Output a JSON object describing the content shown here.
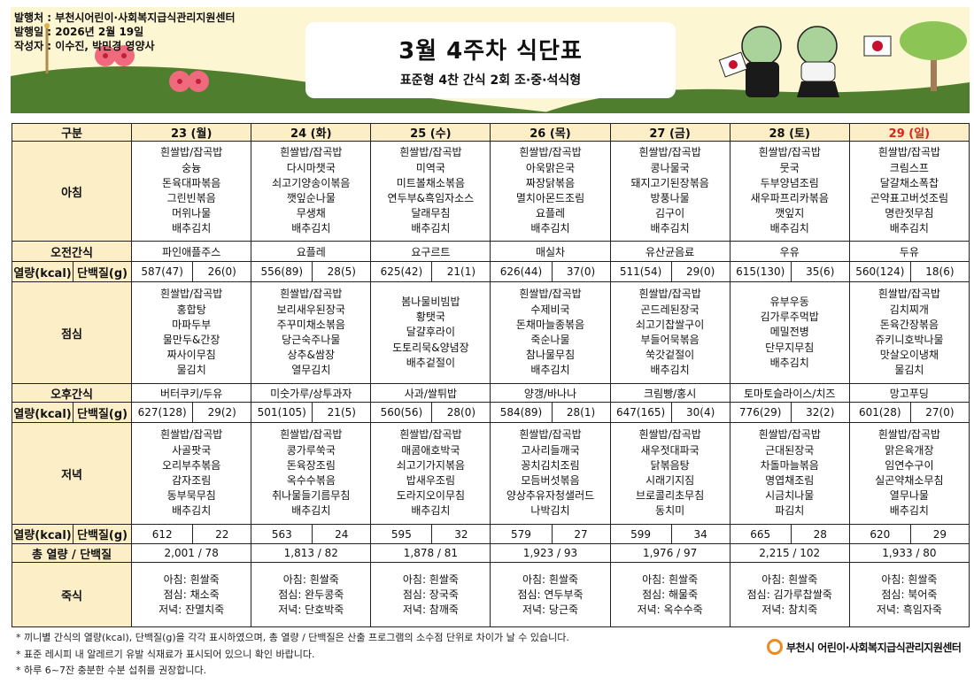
{
  "header": {
    "publisher": "발행처 : 부천시어린이·사회복지급식관리지원센터",
    "date": "발행일 : 2026년 2월 19일",
    "author": "작성자 : 이수진, 박민경 영양사",
    "title": "3월 4주차 식단표",
    "subtitle": "표준형 4찬 간식 2회 조·중·석식형"
  },
  "labels": {
    "category": "구분",
    "breakfast": "아침",
    "am_snack": "오전간식",
    "kcal": "열량(kcal)",
    "protein": "단백질(g)",
    "lunch": "점심",
    "pm_snack": "오후간식",
    "dinner": "저녁",
    "total": "총 열량 / 단백질",
    "porridge": "죽식"
  },
  "colors": {
    "header_bg": "#fcefc8",
    "sunday": "#e0201a",
    "banner_bg": "#fdf6d2",
    "logo": "#f08a1c"
  },
  "days": [
    {
      "label": "23 (월)",
      "sunday": false,
      "breakfast": [
        "흰쌀밥/잡곡밥",
        "숭늉",
        "돈육대파볶음",
        "그린빈볶음",
        "머위나물",
        "배추김치"
      ],
      "am_snack": "파인애플주스",
      "am_kcal": "587(47)",
      "am_protein": "26(0)",
      "lunch": [
        "흰쌀밥/잡곡밥",
        "홍합탕",
        "마파두부",
        "물만두&간장",
        "짜사이무침",
        "물김치"
      ],
      "pm_snack": "버터쿠키/두유",
      "pm_kcal": "627(128)",
      "pm_protein": "29(2)",
      "dinner": [
        "흰쌀밥/잡곡밥",
        "사골팟국",
        "오리부추볶음",
        "감자조림",
        "동부묵무침",
        "배추김치"
      ],
      "dn_kcal": "612",
      "dn_protein": "22",
      "total": "2,001  /  78",
      "porridge": [
        "아침: 흰쌀죽",
        "점심: 채소죽",
        "저녁: 잔멸치죽"
      ]
    },
    {
      "label": "24 (화)",
      "sunday": false,
      "breakfast": [
        "흰쌀밥/잡곡밥",
        "다시마챗국",
        "쇠고기양송이볶음",
        "깻잎순나물",
        "무생채",
        "배추김치"
      ],
      "am_snack": "요플레",
      "am_kcal": "556(89)",
      "am_protein": "28(5)",
      "lunch": [
        "흰쌀밥/잡곡밥",
        "보리새우된장국",
        "주꾸미채소볶음",
        "당근숙주나물",
        "상추&쌈장",
        "열무김치"
      ],
      "pm_snack": "미숫가루/상투과자",
      "pm_kcal": "501(105)",
      "pm_protein": "21(5)",
      "dinner": [
        "흰쌀밥/잡곡밥",
        "콩가루쑥국",
        "돈육장조림",
        "옥수수볶음",
        "취나물들기름무침",
        "배추김치"
      ],
      "dn_kcal": "563",
      "dn_protein": "24",
      "total": "1,813  /  82",
      "porridge": [
        "아침: 흰쌀죽",
        "점심: 완두콩죽",
        "저녁: 단호박죽"
      ]
    },
    {
      "label": "25 (수)",
      "sunday": false,
      "breakfast": [
        "흰쌀밥/잡곡밥",
        "미역국",
        "미트볼채소볶음",
        "연두부&흑임자소스",
        "달래무침",
        "배추김치"
      ],
      "am_snack": "요구르트",
      "am_kcal": "625(42)",
      "am_protein": "21(1)",
      "lunch": [
        "봄나물비빔밥",
        "황탯국",
        "달걀후라이",
        "도토리묵&양념장",
        "배추겉절이"
      ],
      "pm_snack": "사과/쌀튀밥",
      "pm_kcal": "560(56)",
      "pm_protein": "28(0)",
      "dinner": [
        "흰쌀밥/잡곡밥",
        "매콤애호박국",
        "쇠고기가지볶음",
        "밥새우조림",
        "도라지오이무침",
        "배추김치"
      ],
      "dn_kcal": "595",
      "dn_protein": "32",
      "total": "1,878  /  81",
      "porridge": [
        "아침: 흰쌀죽",
        "점심: 장국죽",
        "저녁: 참깨죽"
      ]
    },
    {
      "label": "26 (목)",
      "sunday": false,
      "breakfast": [
        "흰쌀밥/잡곡밥",
        "아욱맑은국",
        "짜장닭볶음",
        "멸치아몬드조림",
        "요플레",
        "배추김치"
      ],
      "am_snack": "매실차",
      "am_kcal": "626(44)",
      "am_protein": "37(0)",
      "lunch": [
        "흰쌀밥/잡곡밥",
        "수제비국",
        "돈채마늘종볶음",
        "죽순나물",
        "참나물무침",
        "배추김치"
      ],
      "pm_snack": "양갱/바나나",
      "pm_kcal": "584(89)",
      "pm_protein": "28(1)",
      "dinner": [
        "흰쌀밥/잡곡밥",
        "고사리들깨국",
        "꽁치김치조림",
        "모듬버섯볶음",
        "양상추유자청샐러드",
        "나박김치"
      ],
      "dn_kcal": "579",
      "dn_protein": "27",
      "total": "1,923  /  93",
      "porridge": [
        "아침: 흰쌀죽",
        "점심: 연두부죽",
        "저녁: 당근죽"
      ]
    },
    {
      "label": "27 (금)",
      "sunday": false,
      "breakfast": [
        "흰쌀밥/잡곡밥",
        "콩나물국",
        "돼지고기된장볶음",
        "방풍나물",
        "김구이",
        "배추김치"
      ],
      "am_snack": "유산균음료",
      "am_kcal": "511(54)",
      "am_protein": "29(0)",
      "lunch": [
        "흰쌀밥/잡곡밥",
        "곤드레된장국",
        "쇠고기찹쌀구이",
        "부들어묵볶음",
        "쑥갓겉절이",
        "배추김치"
      ],
      "pm_snack": "크림빵/홍시",
      "pm_kcal": "647(165)",
      "pm_protein": "30(4)",
      "dinner": [
        "흰쌀밥/잡곡밥",
        "새우젓대파국",
        "닭볶음탕",
        "시래기지짐",
        "브로콜리초무침",
        "동치미"
      ],
      "dn_kcal": "599",
      "dn_protein": "34",
      "total": "1,976  /  97",
      "porridge": [
        "아침: 흰쌀죽",
        "점심: 해물죽",
        "저녁: 옥수수죽"
      ]
    },
    {
      "label": "28 (토)",
      "sunday": false,
      "breakfast": [
        "흰쌀밥/잡곡밥",
        "뭇국",
        "두부양념조림",
        "새우파프리카볶음",
        "깻잎지",
        "배추김치"
      ],
      "am_snack": "우유",
      "am_kcal": "615(130)",
      "am_protein": "35(6)",
      "lunch": [
        "유부우동",
        "김가루주먹밥",
        "메밀전병",
        "단무지무침",
        "배추김치"
      ],
      "pm_snack": "토마토슬라이스/치즈",
      "pm_kcal": "776(29)",
      "pm_protein": "32(2)",
      "dinner": [
        "흰쌀밥/잡곡밥",
        "근대된장국",
        "차돌마늘볶음",
        "명엽채조림",
        "시금치나물",
        "파김치"
      ],
      "dn_kcal": "665",
      "dn_protein": "28",
      "total": "2,215  /  102",
      "porridge": [
        "아침: 흰쌀죽",
        "점심: 김가루찹쌀죽",
        "저녁: 참치죽"
      ]
    },
    {
      "label": "29 (일)",
      "sunday": true,
      "breakfast": [
        "흰쌀밥/잡곡밥",
        "크림스프",
        "달걀채소폭찹",
        "곤약표고버섯조림",
        "명란젓무침",
        "배추김치"
      ],
      "am_snack": "두유",
      "am_kcal": "560(124)",
      "am_protein": "18(6)",
      "lunch": [
        "흰쌀밥/잡곡밥",
        "김치찌개",
        "돈육간장볶음",
        "쥬키니호박나물",
        "맛살오이냉채",
        "물김치"
      ],
      "pm_snack": "망고푸딩",
      "pm_kcal": "601(28)",
      "pm_protein": "27(0)",
      "dinner": [
        "흰쌀밥/잡곡밥",
        "맑은육개장",
        "임연수구이",
        "실곤약채소무침",
        "열무나물",
        "배추김치"
      ],
      "dn_kcal": "620",
      "dn_protein": "29",
      "total": "1,933  /  80",
      "porridge": [
        "아침: 흰쌀죽",
        "점심: 북어죽",
        "저녁: 흑임자죽"
      ]
    }
  ],
  "notes": [
    "* 끼니별 간식의 열량(kcal), 단백질(g)을 각각 표시하였으며, 총 열량 / 단백질은 산출 프로그램의 소수점 단위로 차이가 날 수 있습니다.",
    "* 표준 레시피 내 알레르기 유발 식재료가 표시되어 있으니 확인 바랍니다.",
    "* 하루 6~7잔 충분한 수분 섭취를 권장합니다."
  ],
  "footer_logo": "부천시 어린이·사회복지급식관리지원센터"
}
